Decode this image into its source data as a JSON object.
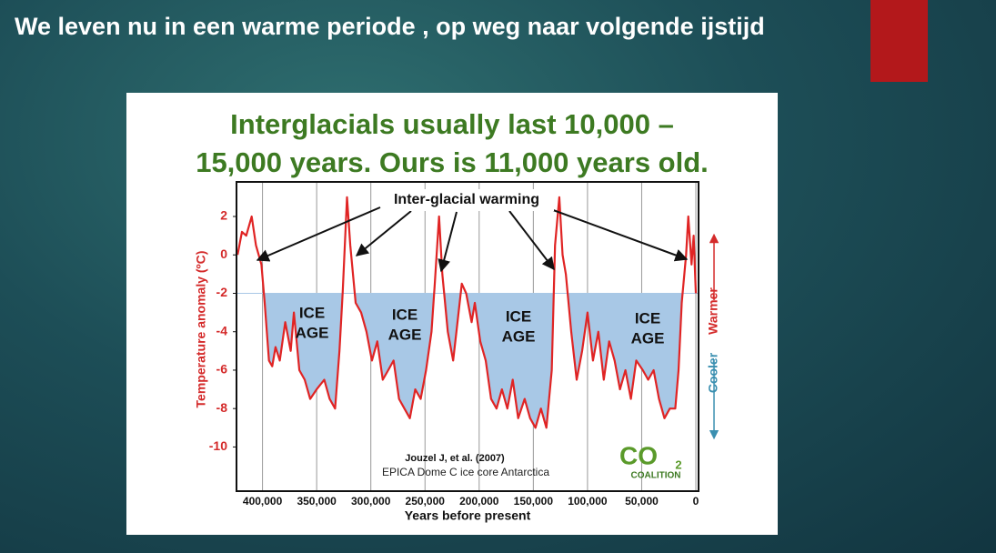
{
  "slide_title": "We leven nu in een warme periode , op weg naar volgende ijstijd",
  "chart_data": {
    "type": "line",
    "title": [
      "Interglacials usually last 10,000 –",
      "15,000 years. Ours is 11,000 years old."
    ],
    "x_label": "Years before present",
    "y_label": "Temperature anomaly (ºC)",
    "annotation": "Inter-glacial warming",
    "ice_age_labels": [
      [
        "ICE",
        "AGE"
      ],
      [
        "ICE",
        "AGE"
      ],
      [
        "ICE",
        "AGE"
      ],
      [
        "ICE",
        "AGE"
      ]
    ],
    "source": [
      "Jouzel J, et al. (2007)",
      "EPICA Dome C ice core Antarctica"
    ],
    "logo": {
      "text": "CO",
      "subscript": "2",
      "name": "COALITION"
    },
    "direction": [
      "Cooler",
      "Warmer"
    ],
    "xlim": [
      424000,
      -2500
    ],
    "ylim": [
      -12.3,
      3.8
    ],
    "xticks": [
      {
        "value": 400000,
        "label": "400,000"
      },
      {
        "value": 350000,
        "label": "350,000"
      },
      {
        "value": 300000,
        "label": "300,000"
      },
      {
        "value": 250000,
        "label": "250,000"
      },
      {
        "value": 200000,
        "label": "200,000"
      },
      {
        "value": 150000,
        "label": "150,000"
      },
      {
        "value": 100000,
        "label": "100,000"
      },
      {
        "value": 50000,
        "label": "50,000"
      },
      0
    ],
    "yticks": [
      2,
      0,
      -2,
      -4,
      -6,
      -8,
      -10
    ],
    "grid": "x",
    "shaded_below": -2,
    "shade_color": "#a8c8e6",
    "x": [
      423000,
      419000,
      415000,
      410000,
      406000,
      401000,
      398000,
      394000,
      391000,
      388000,
      384000,
      379000,
      374000,
      371000,
      366000,
      361000,
      356000,
      350000,
      343000,
      338000,
      333000,
      329000,
      326000,
      322000,
      319000,
      314000,
      309000,
      304000,
      299000,
      294000,
      289000,
      284000,
      279000,
      274000,
      269000,
      264000,
      259000,
      254000,
      249000,
      244000,
      241000,
      237000,
      234000,
      229000,
      224000,
      221000,
      216000,
      212000,
      207000,
      204000,
      199000,
      194000,
      189000,
      184000,
      179000,
      174000,
      169000,
      164000,
      158000,
      153000,
      148000,
      143000,
      138000,
      133000,
      130000,
      126000,
      123000,
      120000,
      115000,
      110000,
      105000,
      100000,
      95000,
      90000,
      85000,
      80000,
      75000,
      70000,
      65000,
      60000,
      55000,
      49000,
      44000,
      39000,
      34000,
      29000,
      24000,
      19000,
      16000,
      13000,
      9000,
      7000,
      4000,
      2000,
      0
    ],
    "series": [
      {
        "name": "Temperature anomaly",
        "color": "#e02424",
        "values": [
          0,
          1.2,
          1.0,
          2.0,
          0.5,
          -0.5,
          -2.5,
          -5.5,
          -5.8,
          -4.8,
          -5.5,
          -3.5,
          -5.0,
          -3.0,
          -6.0,
          -6.5,
          -7.5,
          -7.0,
          -6.5,
          -7.5,
          -8.0,
          -5.0,
          -2.0,
          3.0,
          0.5,
          -2.5,
          -3.0,
          -4.0,
          -5.5,
          -4.5,
          -6.5,
          -6.0,
          -5.5,
          -7.5,
          -8.0,
          -8.5,
          -7.0,
          -7.5,
          -6.0,
          -4.0,
          -1.5,
          2.0,
          -1.0,
          -4.0,
          -5.5,
          -4.0,
          -1.5,
          -2.0,
          -3.5,
          -2.5,
          -4.5,
          -5.5,
          -7.5,
          -8.0,
          -7.0,
          -8.0,
          -6.5,
          -8.5,
          -7.5,
          -8.5,
          -9.0,
          -8.0,
          -9.0,
          -6.0,
          0.5,
          3.0,
          0,
          -1.0,
          -4.0,
          -6.5,
          -5.0,
          -3.0,
          -5.5,
          -4.0,
          -6.5,
          -4.5,
          -5.5,
          -7.0,
          -6.0,
          -7.5,
          -5.5,
          -6.0,
          -6.5,
          -6.0,
          -7.5,
          -8.5,
          -8.0,
          -8.0,
          -6.0,
          -2.5,
          0,
          2.0,
          -0.5,
          1.0,
          -2.0
        ]
      }
    ]
  }
}
